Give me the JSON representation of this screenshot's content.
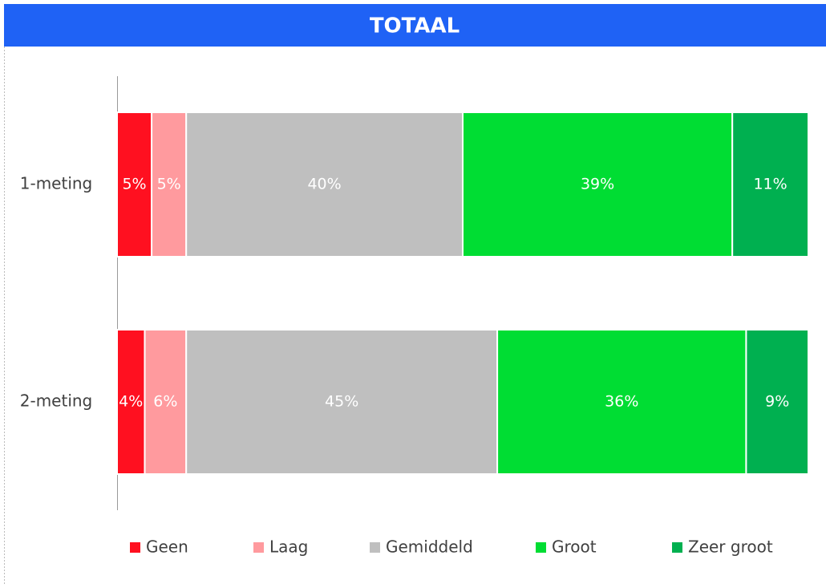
{
  "chart_data": {
    "type": "stacked-barh",
    "title": "TOTAAL",
    "categories": [
      "1-meting",
      "2-meting"
    ],
    "xlim": [
      0,
      100
    ],
    "series": [
      {
        "name": "Geen",
        "color": "#ff1020",
        "values": [
          5,
          4
        ],
        "value_labels": [
          "5%",
          "4%"
        ]
      },
      {
        "name": "Laag",
        "color": "#ff9a9e",
        "values": [
          5,
          6
        ],
        "value_labels": [
          "5%",
          "6%"
        ]
      },
      {
        "name": "Gemiddeld",
        "color": "#bfbfbf",
        "values": [
          40,
          45
        ],
        "value_labels": [
          "40%",
          "45%"
        ]
      },
      {
        "name": "Groot",
        "color": "#00dd33",
        "values": [
          39,
          36
        ],
        "value_labels": [
          "39%",
          "36%"
        ]
      },
      {
        "name": "Zeer groot",
        "color": "#00b050",
        "values": [
          11,
          9
        ],
        "value_labels": [
          "11%",
          "9%"
        ]
      }
    ]
  }
}
